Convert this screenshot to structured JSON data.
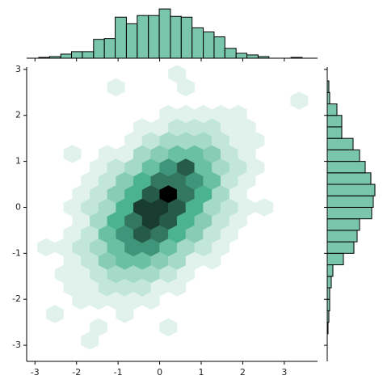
{
  "chart_data": [
    {
      "type": "hexbin",
      "color": "#4CB391",
      "xlim": [
        -3.2,
        3.8
      ],
      "ylim": [
        -3.35,
        3.05
      ],
      "xticks": [
        -3,
        -2,
        -1,
        0,
        1,
        2,
        3
      ],
      "yticks": [
        -3,
        -2,
        -1,
        0,
        1,
        2,
        3
      ],
      "x": [
        -1.89,
        -1.47,
        -1.05,
        -0.63,
        -0.21,
        -2.1,
        -1.68,
        -1.26,
        -0.84,
        -0.42,
        0,
        0.42,
        -2.31,
        -1.89,
        -1.47,
        -1.05,
        -0.63,
        -0.21,
        0.21,
        0.63,
        -2.1,
        -1.68,
        -1.26,
        -0.84,
        -0.42,
        0,
        0.42,
        0.84,
        1.26,
        -2.31,
        -1.89,
        -1.47,
        -1.05,
        -0.63,
        -0.21,
        0.21,
        0.63,
        1.05,
        1.47,
        -2.1,
        -1.68,
        -1.26,
        -0.84,
        -0.42,
        0,
        0.42,
        0.84,
        1.26,
        1.68,
        -1.89,
        -1.47,
        -1.05,
        -0.63,
        -0.21,
        0.21,
        0.63,
        1.05,
        1.47,
        1.89,
        -2.1,
        -1.68,
        -1.26,
        -0.84,
        -0.42,
        0,
        0.42,
        0.84,
        1.26,
        1.68,
        2.1,
        -1.89,
        -1.47,
        -1.05,
        -0.63,
        -0.21,
        0.21,
        0.63,
        1.05,
        1.47,
        1.89,
        -1.68,
        -1.26,
        -0.84,
        -0.42,
        0,
        0.42,
        0.84,
        1.26,
        1.68,
        2.1,
        -1.47,
        -1.05,
        -0.63,
        -0.21,
        0.21,
        0.63,
        1.05,
        1.47,
        1.89,
        2.31,
        -1.26,
        -0.84,
        -0.42,
        0,
        0.42,
        0.84,
        1.26,
        1.68,
        2.1,
        -0.63,
        -0.21,
        0.21,
        0.63,
        1.05,
        1.47,
        1.89,
        2.31,
        -0.42,
        0,
        0.42,
        0.84,
        1.26,
        1.68,
        2.1,
        0.21,
        0.63,
        1.05,
        1.47,
        1.89,
        -2.1,
        -2.73,
        -2.52,
        -1.68,
        -1.47,
        0.21,
        -0.84,
        2.52,
        0.63,
        0.42,
        3.36,
        -1.05
      ],
      "y": [
        -2.03,
        -2.03,
        -2.03,
        -2.03,
        -2.03,
        -1.74,
        -1.74,
        -1.74,
        -1.74,
        -1.74,
        -1.74,
        -1.74,
        -1.45,
        -1.45,
        -1.45,
        -1.45,
        -1.45,
        -1.45,
        -1.45,
        -1.45,
        -1.16,
        -1.16,
        -1.16,
        -1.16,
        -1.16,
        -1.16,
        -1.16,
        -1.16,
        -1.16,
        -0.87,
        -0.87,
        -0.87,
        -0.87,
        -0.87,
        -0.87,
        -0.87,
        -0.87,
        -0.87,
        -0.87,
        -0.58,
        -0.58,
        -0.58,
        -0.58,
        -0.58,
        -0.58,
        -0.58,
        -0.58,
        -0.58,
        -0.58,
        -0.29,
        -0.29,
        -0.29,
        -0.29,
        -0.29,
        -0.29,
        -0.29,
        -0.29,
        -0.29,
        -0.29,
        0,
        0,
        0,
        0,
        0,
        0,
        0,
        0,
        0,
        0,
        0,
        0.29,
        0.29,
        0.29,
        0.29,
        0.29,
        0.29,
        0.29,
        0.29,
        0.29,
        0.29,
        0.58,
        0.58,
        0.58,
        0.58,
        0.58,
        0.58,
        0.58,
        0.58,
        0.58,
        0.58,
        0.87,
        0.87,
        0.87,
        0.87,
        0.87,
        0.87,
        0.87,
        0.87,
        0.87,
        0.87,
        1.16,
        1.16,
        1.16,
        1.16,
        1.16,
        1.16,
        1.16,
        1.16,
        1.16,
        1.45,
        1.45,
        1.45,
        1.45,
        1.45,
        1.45,
        1.45,
        1.45,
        1.74,
        1.74,
        1.74,
        1.74,
        1.74,
        1.74,
        1.74,
        2.03,
        2.03,
        2.03,
        2.03,
        2.03,
        1.16,
        -0.87,
        -2.32,
        -2.9,
        -2.61,
        -2.61,
        -2.32,
        0,
        2.61,
        2.9,
        2.32,
        2.61
      ],
      "values": [
        1,
        1,
        1,
        1,
        1,
        1,
        1,
        2,
        2,
        2,
        1,
        1,
        1,
        1,
        2,
        3,
        3,
        3,
        2,
        1,
        1,
        2,
        4,
        5,
        5,
        4,
        3,
        1,
        1,
        1,
        2,
        3,
        5,
        7,
        7,
        5,
        3,
        2,
        1,
        1,
        2,
        5,
        7,
        9,
        8,
        6,
        4,
        2,
        1,
        1,
        3,
        6,
        8,
        10,
        9,
        6,
        4,
        2,
        1,
        1,
        2,
        3,
        6,
        10,
        10,
        9,
        6,
        3,
        2,
        1,
        1,
        2,
        4,
        6,
        9,
        12,
        8,
        6,
        3,
        1,
        1,
        2,
        4,
        6,
        8,
        8,
        7,
        5,
        2,
        1,
        1,
        2,
        3,
        5,
        7,
        9,
        5,
        3,
        2,
        1,
        1,
        1,
        3,
        4,
        5,
        5,
        4,
        2,
        1,
        1,
        2,
        3,
        3,
        3,
        2,
        1,
        1,
        1,
        1,
        2,
        2,
        2,
        1,
        1,
        1,
        1,
        1,
        1,
        1,
        1,
        1,
        1,
        1,
        1,
        1,
        1,
        1,
        1,
        1,
        1,
        1
      ]
    },
    {
      "type": "histogram",
      "orientation": "vertical",
      "color": "#4CB391",
      "xlim": [
        -3.2,
        3.8
      ],
      "ylim": [
        0,
        66
      ],
      "xticks": [
        -3,
        -2,
        -1,
        0,
        1,
        2,
        3
      ],
      "bins": [
        -2.91,
        -2.65,
        -2.38,
        -2.12,
        -1.86,
        -1.59,
        -1.33,
        -1.07,
        -0.8,
        -0.54,
        -0.27,
        -0.01,
        0.26,
        0.52,
        0.78,
        1.05,
        1.31,
        1.57,
        1.84,
        2.1,
        2.37,
        2.63,
        2.9,
        3.16,
        3.43
      ],
      "values": [
        1,
        2,
        5,
        8,
        8,
        23,
        24,
        50,
        42,
        52,
        52,
        60,
        51,
        50,
        37,
        32,
        26,
        12,
        6,
        4,
        2,
        0,
        0,
        1
      ]
    },
    {
      "type": "histogram",
      "orientation": "horizontal",
      "color": "#4CB391",
      "xlim": [
        0,
        62
      ],
      "ylim": [
        -3.35,
        3.05
      ],
      "yticks": [
        -3,
        -2,
        -1,
        0,
        1,
        2,
        3
      ],
      "bins": [
        -2.75,
        -2.5,
        -2.25,
        -2,
        -1.75,
        -1.5,
        -1.25,
        -1,
        -0.75,
        -0.5,
        -0.25,
        0,
        0.25,
        0.5,
        0.75,
        1,
        1.25,
        1.5,
        1.75,
        2,
        2.25,
        2.5,
        2.75
      ],
      "values": [
        1,
        2,
        3,
        3,
        5,
        7,
        20,
        33,
        37,
        40,
        55,
        57,
        59,
        54,
        47,
        40,
        32,
        18,
        18,
        12,
        3,
        2
      ]
    }
  ]
}
